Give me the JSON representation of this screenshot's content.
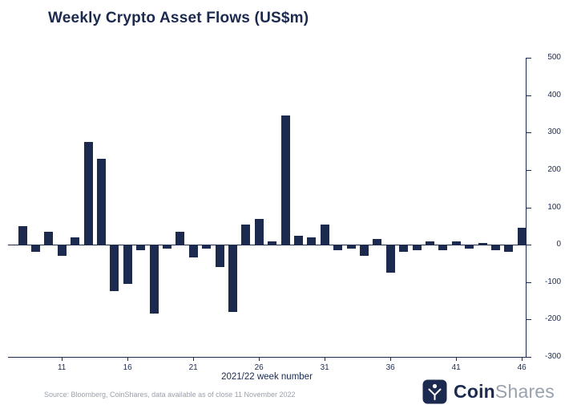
{
  "page": {
    "title": "Weekly Crypto Asset Flows (US$m)"
  },
  "chart_data": {
    "type": "bar",
    "title": "Weekly Crypto Asset Flows (US$m)",
    "xlabel": "2021/22 week number",
    "ylabel": "",
    "x": [
      8,
      9,
      10,
      11,
      12,
      13,
      14,
      15,
      16,
      17,
      18,
      19,
      20,
      21,
      22,
      23,
      24,
      25,
      26,
      27,
      28,
      29,
      30,
      31,
      32,
      33,
      34,
      35,
      36,
      37,
      38,
      39,
      40,
      41,
      42,
      43,
      44,
      45,
      46
    ],
    "values": [
      50,
      -20,
      35,
      -30,
      20,
      275,
      230,
      -125,
      -105,
      -15,
      -185,
      -10,
      35,
      -35,
      -10,
      -60,
      -180,
      55,
      70,
      10,
      345,
      25,
      20,
      55,
      -15,
      -10,
      -30,
      15,
      -75,
      -20,
      -15,
      10,
      -15,
      10,
      -10,
      5,
      -15,
      -20,
      45
    ],
    "ylim": [
      -300,
      500
    ],
    "yticks": [
      500,
      400,
      300,
      200,
      100,
      0,
      -100,
      -200,
      -300
    ],
    "xticks": [
      11,
      16,
      21,
      26,
      31,
      36,
      41,
      46
    ],
    "bar_color": "#1b2a4e",
    "axis_color": "#1b2a4e",
    "grid": false,
    "legend_position": "none",
    "y_axis_side": "right"
  },
  "footer": {
    "source": "Source: Bloomberg, CoinShares, data available as of close 11 November 2022",
    "logo_bold": "Coin",
    "logo_light": "Shares"
  },
  "colors": {
    "navy": "#1b2a4e",
    "gray": "#9aa0ab",
    "background": "#ffffff"
  }
}
